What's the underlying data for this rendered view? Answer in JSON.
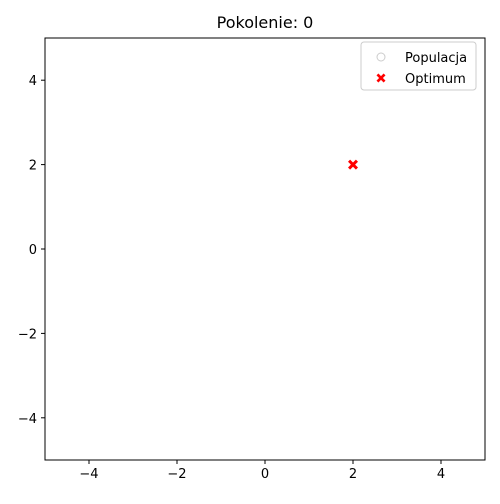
{
  "chart_data": {
    "type": "scatter",
    "title": "Pokolenie: 0",
    "xlabel": "",
    "ylabel": "",
    "xlim": [
      -5,
      5
    ],
    "ylim": [
      -5,
      5
    ],
    "x_ticks": [
      -4,
      -2,
      0,
      2,
      4
    ],
    "y_ticks": [
      -4,
      -2,
      0,
      2,
      4
    ],
    "x_tick_labels": [
      "−4",
      "−2",
      "0",
      "2",
      "4"
    ],
    "y_tick_labels": [
      "−4",
      "−2",
      "0",
      "2",
      "4"
    ],
    "grid": false,
    "legend_position": "top-right",
    "series": [
      {
        "name": "Populacja",
        "marker": "hollow-circle",
        "color": "#cccccc",
        "points": []
      },
      {
        "name": "Optimum",
        "marker": "x-filled",
        "color": "#ff0000",
        "points": [
          {
            "x": 2,
            "y": 2
          }
        ]
      }
    ]
  }
}
